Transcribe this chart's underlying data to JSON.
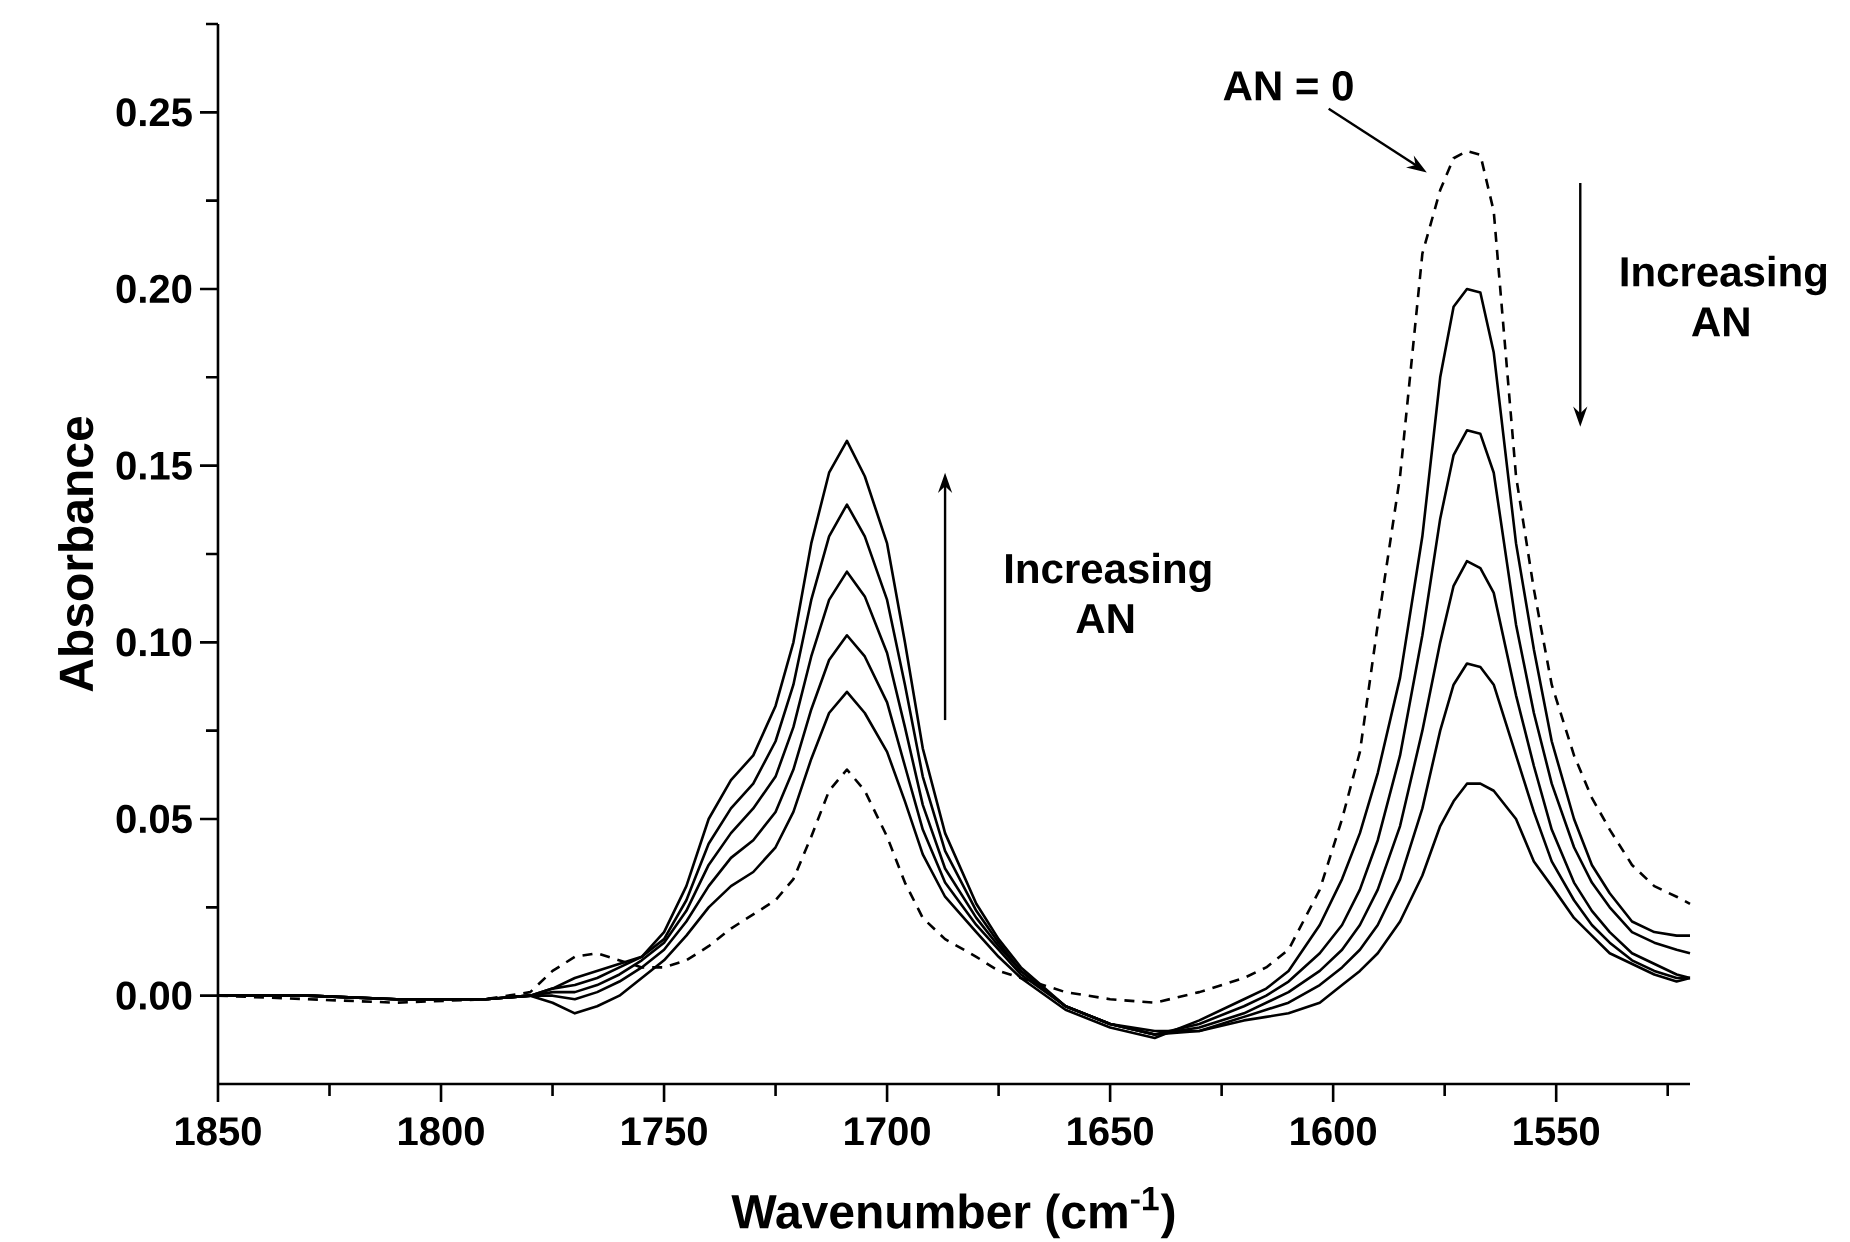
{
  "chart_data": {
    "type": "line",
    "xlabel": "Wavenumber (cm$^{-1}$)",
    "ylabel": "Absorbance",
    "x": [
      1850,
      1830,
      1810,
      1790,
      1780,
      1775,
      1770,
      1765,
      1760,
      1755,
      1750,
      1745,
      1740,
      1735,
      1730,
      1725,
      1721,
      1717,
      1713,
      1709,
      1705,
      1700,
      1696,
      1692,
      1687,
      1680,
      1675,
      1670,
      1660,
      1650,
      1640,
      1630,
      1620,
      1615,
      1610,
      1603,
      1598,
      1594,
      1590,
      1585,
      1580,
      1576,
      1573,
      1570,
      1567,
      1564,
      1559,
      1555,
      1551,
      1546,
      1542,
      1538,
      1533,
      1528,
      1523,
      1520
    ],
    "series": [
      {
        "color": "#000000",
        "line_style": "dashed",
        "values": [
          0.0,
          -0.001,
          -0.002,
          -0.001,
          0.001,
          0.007,
          0.011,
          0.012,
          0.01,
          0.008,
          0.008,
          0.01,
          0.014,
          0.019,
          0.023,
          0.027,
          0.033,
          0.045,
          0.058,
          0.064,
          0.058,
          0.045,
          0.032,
          0.022,
          0.016,
          0.011,
          0.007,
          0.005,
          0.001,
          -0.001,
          -0.002,
          0.001,
          0.005,
          0.008,
          0.013,
          0.03,
          0.05,
          0.069,
          0.105,
          0.147,
          0.21,
          0.228,
          0.237,
          0.239,
          0.238,
          0.222,
          0.147,
          0.115,
          0.088,
          0.068,
          0.056,
          0.047,
          0.037,
          0.031,
          0.028,
          0.026
        ]
      },
      {
        "color": "#000000",
        "line_style": "solid",
        "values": [
          0.0,
          0.0,
          -0.001,
          -0.001,
          0.0,
          -0.002,
          -0.005,
          -0.003,
          0.0,
          0.005,
          0.01,
          0.017,
          0.025,
          0.031,
          0.035,
          0.042,
          0.052,
          0.067,
          0.08,
          0.086,
          0.08,
          0.069,
          0.055,
          0.04,
          0.028,
          0.018,
          0.011,
          0.005,
          -0.004,
          -0.009,
          -0.012,
          -0.007,
          -0.001,
          0.002,
          0.007,
          0.02,
          0.033,
          0.046,
          0.063,
          0.09,
          0.13,
          0.175,
          0.195,
          0.2,
          0.199,
          0.182,
          0.128,
          0.098,
          0.072,
          0.05,
          0.037,
          0.029,
          0.021,
          0.018,
          0.017,
          0.017
        ]
      },
      {
        "color": "#000000",
        "line_style": "solid",
        "values": [
          0.0,
          0.0,
          -0.001,
          -0.001,
          0.0,
          0.0,
          -0.001,
          0.001,
          0.004,
          0.008,
          0.013,
          0.021,
          0.031,
          0.039,
          0.044,
          0.052,
          0.064,
          0.081,
          0.095,
          0.102,
          0.096,
          0.083,
          0.065,
          0.047,
          0.032,
          0.02,
          0.013,
          0.006,
          -0.003,
          -0.008,
          -0.011,
          -0.008,
          -0.003,
          0.0,
          0.004,
          0.012,
          0.02,
          0.03,
          0.044,
          0.068,
          0.102,
          0.135,
          0.153,
          0.16,
          0.159,
          0.148,
          0.105,
          0.08,
          0.06,
          0.042,
          0.032,
          0.025,
          0.018,
          0.015,
          0.013,
          0.012
        ]
      },
      {
        "color": "#000000",
        "line_style": "solid",
        "values": [
          0.0,
          0.0,
          -0.001,
          -0.001,
          0.0,
          0.001,
          0.001,
          0.003,
          0.006,
          0.01,
          0.015,
          0.024,
          0.037,
          0.046,
          0.053,
          0.062,
          0.076,
          0.096,
          0.112,
          0.12,
          0.113,
          0.097,
          0.076,
          0.054,
          0.036,
          0.022,
          0.014,
          0.007,
          -0.003,
          -0.008,
          -0.011,
          -0.009,
          -0.005,
          -0.002,
          0.001,
          0.007,
          0.013,
          0.02,
          0.03,
          0.048,
          0.075,
          0.1,
          0.116,
          0.123,
          0.121,
          0.114,
          0.085,
          0.065,
          0.047,
          0.032,
          0.024,
          0.018,
          0.012,
          0.009,
          0.006,
          0.005
        ]
      },
      {
        "color": "#000000",
        "line_style": "solid",
        "values": [
          0.0,
          0.0,
          -0.001,
          -0.001,
          0.0,
          0.002,
          0.003,
          0.005,
          0.008,
          0.011,
          0.016,
          0.027,
          0.043,
          0.053,
          0.06,
          0.072,
          0.088,
          0.112,
          0.13,
          0.139,
          0.13,
          0.112,
          0.088,
          0.062,
          0.041,
          0.024,
          0.015,
          0.007,
          -0.003,
          -0.008,
          -0.011,
          -0.01,
          -0.006,
          -0.004,
          -0.002,
          0.003,
          0.008,
          0.013,
          0.02,
          0.033,
          0.053,
          0.075,
          0.088,
          0.094,
          0.093,
          0.088,
          0.068,
          0.052,
          0.038,
          0.027,
          0.02,
          0.015,
          0.01,
          0.007,
          0.005,
          0.005
        ]
      },
      {
        "color": "#000000",
        "line_style": "solid",
        "values": [
          0.0,
          0.0,
          -0.001,
          -0.001,
          0.0,
          0.002,
          0.005,
          0.007,
          0.009,
          0.011,
          0.018,
          0.031,
          0.05,
          0.061,
          0.068,
          0.082,
          0.1,
          0.128,
          0.148,
          0.157,
          0.147,
          0.128,
          0.1,
          0.07,
          0.046,
          0.026,
          0.016,
          0.008,
          -0.003,
          -0.008,
          -0.01,
          -0.01,
          -0.007,
          -0.006,
          -0.005,
          -0.002,
          0.003,
          0.007,
          0.012,
          0.021,
          0.034,
          0.048,
          0.055,
          0.06,
          0.06,
          0.058,
          0.05,
          0.038,
          0.031,
          0.022,
          0.017,
          0.012,
          0.009,
          0.006,
          0.004,
          0.005
        ]
      }
    ],
    "xlim": [
      1850,
      1520
    ],
    "ylim": [
      -0.025,
      0.275
    ],
    "xticks": [
      1850,
      {
        "value": 1825,
        "label": null
      },
      1800,
      {
        "value": 1775,
        "label": null
      },
      1750,
      {
        "value": 1725,
        "label": null
      },
      1700,
      {
        "value": 1675,
        "label": null
      },
      1650,
      {
        "value": 1625,
        "label": null
      },
      1600,
      {
        "value": 1575,
        "label": null
      },
      1550,
      {
        "value": 1525,
        "label": null
      }
    ],
    "yticks": [
      {
        "value": 0,
        "label": "0.00"
      },
      {
        "value": 0.025,
        "label": null
      },
      {
        "value": 0.05,
        "label": "0.05"
      },
      {
        "value": 0.075,
        "label": null
      },
      {
        "value": 0.1,
        "label": "0.10"
      },
      {
        "value": 0.125,
        "label": null
      },
      {
        "value": 0.15,
        "label": "0.15"
      },
      {
        "value": 0.175,
        "label": null
      },
      {
        "value": 0.2,
        "label": "0.20"
      },
      {
        "value": 0.225,
        "label": null
      },
      {
        "value": 0.25,
        "label": "0.25"
      },
      {
        "value": 0.275,
        "label": null
      }
    ],
    "annotations": [
      "AN = 0",
      "Increasing AN",
      "Increasing AN"
    ]
  }
}
